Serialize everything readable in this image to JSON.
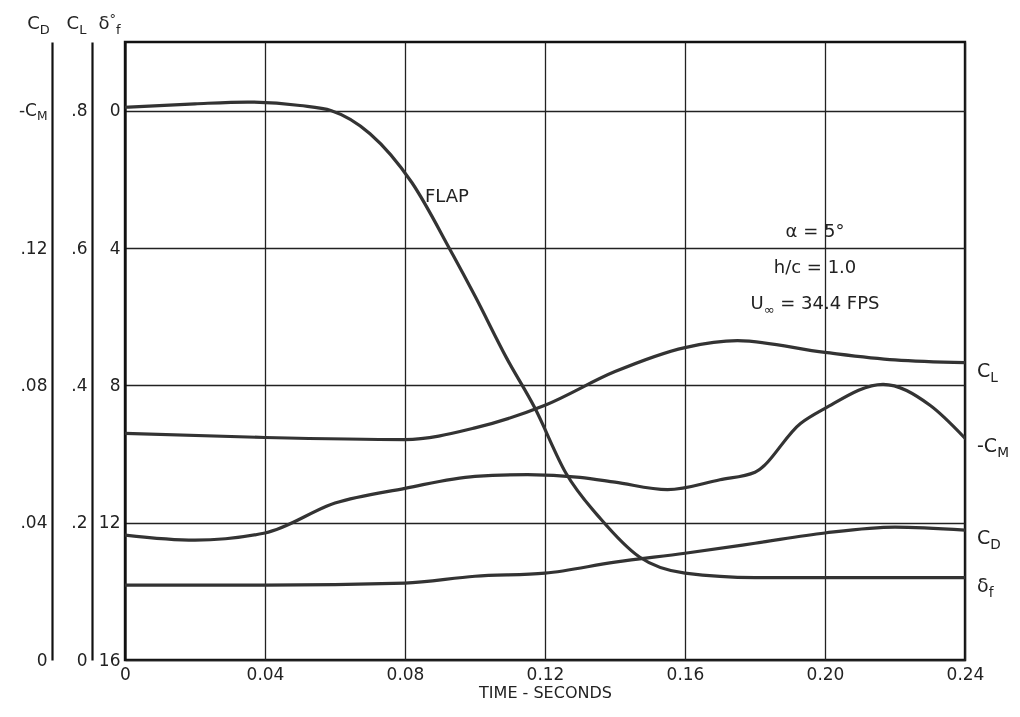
{
  "chart_data": {
    "type": "line",
    "xlabel": "TIME - SECONDS",
    "ylabel": "C$_{D}$",
    "y2label": "C$_{L}$",
    "y3label": "δ$^{°}$$_{f}$",
    "xlim": [
      0,
      0.24
    ],
    "xticks": [
      0,
      0.04,
      0.08,
      0.12,
      0.16,
      {
        "value": 0.2,
        "label": "0.20"
      },
      0.24
    ],
    "ylim": [
      0,
      0.18
    ],
    "yticks": [
      0,
      {
        "value": 0.04,
        "label": ".04"
      },
      {
        "value": 0.08,
        "label": ".08"
      },
      {
        "value": 0.12,
        "label": ".12"
      },
      {
        "value": 0.16,
        "label": "-C$_{M}$"
      }
    ],
    "y2lim": [
      0,
      0.9
    ],
    "y2ticks": [
      0,
      {
        "value": 0.2,
        "label": ".2"
      },
      {
        "value": 0.4,
        "label": ".4"
      },
      {
        "value": 0.6,
        "label": ".6"
      },
      {
        "value": 0.8,
        "label": ".8"
      }
    ],
    "y3lim": [
      16,
      -2
    ],
    "y3ticks": [
      0,
      4,
      8,
      12,
      16
    ],
    "grid": true,
    "line_style": "solid",
    "annotations": [
      "FLAP",
      "α = 5°",
      "h/c = 1.0",
      "U$_{∞}$ = 34.4 FPS"
    ],
    "series": [
      {
        "name": "C$_{L}$",
        "color": "#333333",
        "axis": "y2",
        "x": [
          0,
          0.04,
          0.08,
          0.1,
          0.12,
          0.14,
          0.16,
          0.175,
          0.2,
          0.22,
          0.24
        ],
        "values": [
          0.33,
          0.324,
          0.321,
          0.338,
          0.371,
          0.42,
          0.455,
          0.465,
          0.448,
          0.437,
          0.433
        ]
      },
      {
        "name": "-C$_{M}$",
        "color": "#333333",
        "x": [
          0,
          0.02,
          0.04,
          0.06,
          0.08,
          0.1,
          0.115,
          0.13,
          0.14,
          0.155,
          0.17,
          0.18,
          0.193,
          0.2,
          0.2166,
          0.23,
          0.24
        ],
        "values": [
          0.0364,
          0.0349,
          0.037,
          0.0457,
          0.05,
          0.0535,
          0.054,
          0.0532,
          0.0518,
          0.0496,
          0.0525,
          0.0547,
          0.0689,
          0.0733,
          0.0803,
          0.0742,
          0.0646
        ]
      },
      {
        "name": "C$_{D}$",
        "color": "#333333",
        "x": [
          0,
          0.04,
          0.08,
          0.1,
          0.12,
          0.14,
          0.16,
          0.18,
          0.2,
          0.22,
          0.24
        ],
        "values": [
          0.0218,
          0.0218,
          0.0224,
          0.0244,
          0.0253,
          0.0285,
          0.0311,
          0.034,
          0.037,
          0.0387,
          0.0378
        ]
      },
      {
        "name": "δ$_{f}$",
        "color": "#333333",
        "axis": "y3",
        "x": [
          0,
          0.02,
          0.035,
          0.05,
          0.059,
          0.07,
          0.082,
          0.093,
          0.1,
          0.109,
          0.117,
          0.126,
          0.136,
          0.147,
          0.16,
          0.18,
          0.24
        ],
        "values": [
          -0.1,
          -0.2,
          -0.25,
          -0.15,
          0,
          0.67,
          2.1,
          4.07,
          5.4,
          7.2,
          8.64,
          10.56,
          11.9,
          13,
          13.47,
          13.6,
          13.6
        ]
      }
    ]
  }
}
